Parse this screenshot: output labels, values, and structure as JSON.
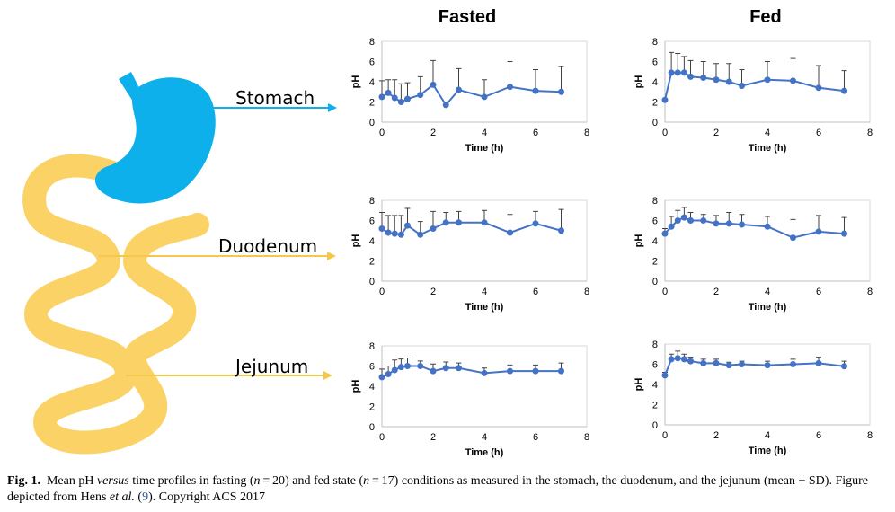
{
  "column_titles": [
    "Fasted",
    "Fed"
  ],
  "organ_labels": [
    "Stomach",
    "Duodenum",
    "Jejunum"
  ],
  "colors": {
    "series": "#4472C4",
    "error_bar": "#404040",
    "stomach": "#0DB0EA",
    "intestine": "#FAD265",
    "arrow": "#0DB0EA",
    "arrow_intestine": "#F5C84A"
  },
  "caption": {
    "prefix": "Fig. 1.",
    "part1": "Mean pH ",
    "versus": "versus",
    "part2": " time profiles in fasting (",
    "n1_var": "n",
    "n1_val": " = 20",
    "part3": ") and fed state (",
    "n2_var": "n",
    "n2_val": " = 17",
    "part4": ") conditions as measured in the stomach, the duodenum, and the jejunum (mean + SD). Figure depicted from Hens ",
    "etal": "et al.",
    "part5": " (",
    "ref": "9",
    "part6": "). Copyright ACS 2017"
  },
  "chart_data": [
    {
      "type": "line",
      "panel": "Stomach - Fasted",
      "xlabel": "Time (h)",
      "ylabel": "pH",
      "xlim": [
        0,
        8
      ],
      "ylim": [
        0,
        8
      ],
      "xticks": [
        0,
        2,
        4,
        6,
        8
      ],
      "yticks": [
        0,
        2,
        4,
        6,
        8
      ],
      "x": [
        0,
        0.25,
        0.5,
        0.75,
        1,
        1.5,
        2,
        2.5,
        3,
        4,
        5,
        6,
        7
      ],
      "y": [
        2.5,
        2.9,
        2.4,
        2.0,
        2.3,
        2.7,
        3.7,
        1.7,
        3.2,
        2.5,
        3.5,
        3.1,
        3.0
      ],
      "sd": [
        1.6,
        1.3,
        1.8,
        1.8,
        1.6,
        1.8,
        2.4,
        0.3,
        2.1,
        1.7,
        2.5,
        2.1,
        2.5
      ]
    },
    {
      "type": "line",
      "panel": "Stomach - Fed",
      "xlabel": "Time (h)",
      "ylabel": "pH",
      "xlim": [
        0,
        8
      ],
      "ylim": [
        0,
        8
      ],
      "xticks": [
        0,
        2,
        4,
        6,
        8
      ],
      "yticks": [
        0,
        2,
        4,
        6,
        8
      ],
      "x": [
        0,
        0.25,
        0.5,
        0.75,
        1,
        1.5,
        2,
        2.5,
        3,
        4,
        5,
        6,
        7
      ],
      "y": [
        2.2,
        4.9,
        4.9,
        4.9,
        4.5,
        4.4,
        4.2,
        4.0,
        3.6,
        4.2,
        4.1,
        3.4,
        3.1
      ],
      "sd": [
        0.0,
        2.0,
        1.9,
        1.6,
        1.6,
        1.6,
        1.6,
        1.8,
        1.6,
        1.8,
        2.2,
        2.2,
        2.0
      ]
    },
    {
      "type": "line",
      "panel": "Duodenum - Fasted",
      "xlabel": "Time (h)",
      "ylabel": "pH",
      "xlim": [
        0,
        8
      ],
      "ylim": [
        0,
        8
      ],
      "xticks": [
        0,
        2,
        4,
        6,
        8
      ],
      "yticks": [
        0,
        2,
        4,
        6,
        8
      ],
      "x": [
        0,
        0.25,
        0.5,
        0.75,
        1,
        1.5,
        2,
        2.5,
        3,
        4,
        5,
        6,
        7
      ],
      "y": [
        5.2,
        4.8,
        4.7,
        4.6,
        5.5,
        4.6,
        5.2,
        5.8,
        5.8,
        5.8,
        4.8,
        5.7,
        5.0
      ],
      "sd": [
        1.6,
        1.7,
        1.8,
        1.9,
        1.7,
        1.3,
        1.7,
        1.0,
        1.1,
        1.2,
        1.8,
        1.2,
        2.1
      ]
    },
    {
      "type": "line",
      "panel": "Duodenum - Fed",
      "xlabel": "Time (h)",
      "ylabel": "pH",
      "xlim": [
        0,
        8
      ],
      "ylim": [
        0,
        8
      ],
      "xticks": [
        0,
        2,
        4,
        6,
        8
      ],
      "yticks": [
        0,
        2,
        4,
        6,
        8
      ],
      "x": [
        0,
        0.25,
        0.5,
        0.75,
        1,
        1.5,
        2,
        2.5,
        3,
        4,
        5,
        6,
        7
      ],
      "y": [
        4.7,
        5.4,
        6.0,
        6.3,
        6.0,
        6.0,
        5.7,
        5.7,
        5.6,
        5.4,
        4.3,
        4.9,
        4.7
      ],
      "sd": [
        0.5,
        1.0,
        1.0,
        1.0,
        0.8,
        0.6,
        0.8,
        1.1,
        1.0,
        1.0,
        1.8,
        1.6,
        1.6
      ]
    },
    {
      "type": "line",
      "panel": "Jejunum - Fasted",
      "xlabel": "Time (h)",
      "ylabel": "pH",
      "xlim": [
        0,
        8
      ],
      "ylim": [
        0,
        8
      ],
      "xticks": [
        0,
        2,
        4,
        6,
        8
      ],
      "yticks": [
        0,
        2,
        4,
        6,
        8
      ],
      "x": [
        0,
        0.25,
        0.5,
        0.75,
        1,
        1.5,
        2,
        2.5,
        3,
        4,
        5,
        6,
        7
      ],
      "y": [
        4.9,
        5.2,
        5.6,
        5.9,
        6.0,
        6.0,
        5.5,
        5.8,
        5.8,
        5.3,
        5.5,
        5.5,
        5.5
      ],
      "sd": [
        0.8,
        0.8,
        1.0,
        0.8,
        0.8,
        0.5,
        0.7,
        0.6,
        0.5,
        0.5,
        0.6,
        0.6,
        0.8
      ]
    },
    {
      "type": "line",
      "panel": "Jejunum - Fed",
      "xlabel": "Time (h)",
      "ylabel": "pH",
      "xlim": [
        0,
        8
      ],
      "ylim": [
        0,
        8
      ],
      "xticks": [
        0,
        2,
        4,
        6,
        8
      ],
      "yticks": [
        0,
        2,
        4,
        6,
        8
      ],
      "x": [
        0,
        0.25,
        0.5,
        0.75,
        1,
        1.5,
        2,
        2.5,
        3,
        4,
        5,
        6,
        7
      ],
      "y": [
        4.9,
        6.5,
        6.6,
        6.5,
        6.3,
        6.1,
        6.1,
        5.9,
        6.0,
        5.9,
        6.0,
        6.1,
        5.8
      ],
      "sd": [
        0.3,
        0.5,
        0.7,
        0.5,
        0.4,
        0.4,
        0.4,
        0.3,
        0.3,
        0.4,
        0.5,
        0.6,
        0.5
      ]
    }
  ]
}
